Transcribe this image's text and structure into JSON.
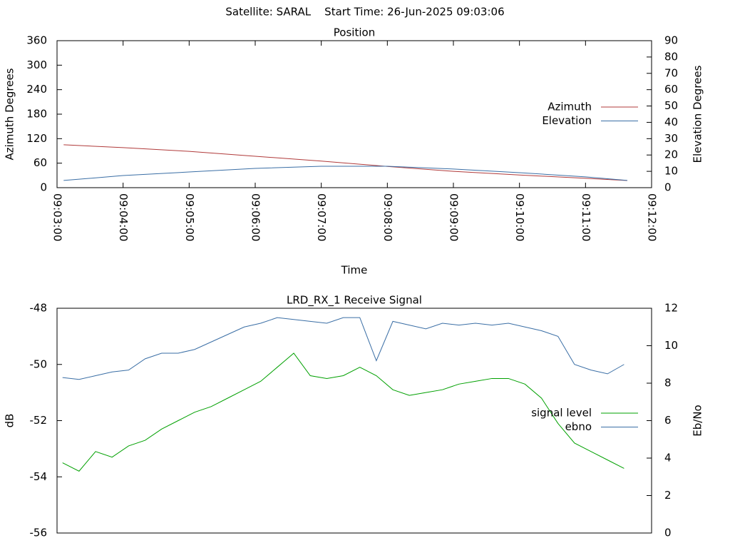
{
  "title": "Satellite: SARAL    Start Time: 26-Jun-2025 09:03:06",
  "chart_data": [
    {
      "type": "line",
      "title": "Position",
      "xlabel": "Time",
      "ylabel": "Azimuth Degrees",
      "y2label": "Elevation Degrees",
      "x": [
        "09:03:06",
        "09:04:00",
        "09:05:00",
        "09:06:00",
        "09:07:00",
        "09:08:00",
        "09:09:00",
        "09:10:00",
        "09:11:00",
        "09:11:38"
      ],
      "series": [
        {
          "name": "Azimuth",
          "color": "#b03a3a",
          "values": [
            105,
            98,
            89,
            77,
            65,
            52,
            40,
            31,
            23,
            17.5
          ]
        },
        {
          "name": "Elevation",
          "color": "#3a6ea5",
          "axis": "y2",
          "values": [
            4.4,
            7.4,
            9.6,
            11.8,
            13.1,
            13.1,
            11.4,
            9.2,
            6.6,
            4.4
          ]
        }
      ],
      "xlim": [
        "09:03:00",
        "09:12:00"
      ],
      "xticks": [
        "09:03:00",
        "09:04:00",
        "09:05:00",
        "09:06:00",
        "09:07:00",
        "09:08:00",
        "09:09:00",
        "09:10:00",
        "09:11:00",
        "09:12:00"
      ],
      "ylim": [
        0,
        360
      ],
      "yticks": [
        0,
        60,
        120,
        180,
        240,
        300,
        360
      ],
      "y2lim": [
        0,
        90
      ],
      "y2ticks": [
        0,
        10,
        20,
        30,
        40,
        50,
        60,
        70,
        80,
        90
      ]
    },
    {
      "type": "line",
      "title": "LRD_RX_1 Receive Signal",
      "ylabel": "dB",
      "y2label": "Eb/No",
      "x": [
        "09:03:05",
        "09:03:20",
        "09:03:35",
        "09:03:50",
        "09:04:05",
        "09:04:20",
        "09:04:35",
        "09:04:50",
        "09:05:05",
        "09:05:20",
        "09:05:35",
        "09:05:50",
        "09:06:05",
        "09:06:20",
        "09:06:35",
        "09:06:50",
        "09:07:05",
        "09:07:20",
        "09:07:35",
        "09:07:50",
        "09:08:05",
        "09:08:20",
        "09:08:35",
        "09:08:50",
        "09:09:05",
        "09:09:20",
        "09:09:35",
        "09:09:50",
        "09:10:05",
        "09:10:20",
        "09:10:35",
        "09:10:50",
        "09:11:05",
        "09:11:20",
        "09:11:35"
      ],
      "series": [
        {
          "name": "signal level",
          "color": "#00a000",
          "values": [
            -53.5,
            -53.8,
            -53.1,
            -53.3,
            -52.9,
            -52.7,
            -52.3,
            -52.0,
            -51.7,
            -51.5,
            -51.2,
            -50.9,
            -50.6,
            -50.1,
            -49.6,
            -50.4,
            -50.5,
            -50.4,
            -50.1,
            -50.4,
            -50.9,
            -51.1,
            -51.0,
            -50.9,
            -50.7,
            -50.6,
            -50.5,
            -50.5,
            -50.7,
            -51.2,
            -52.1,
            -52.8,
            -53.1,
            -53.4,
            -53.7
          ]
        },
        {
          "name": "ebno",
          "color": "#3a6ea5",
          "axis": "y2",
          "values": [
            8.3,
            8.2,
            8.4,
            8.6,
            8.7,
            9.3,
            9.6,
            9.6,
            9.8,
            10.2,
            10.6,
            11.0,
            11.2,
            11.5,
            11.4,
            11.3,
            11.2,
            11.5,
            11.5,
            9.2,
            11.3,
            11.1,
            10.9,
            11.2,
            11.1,
            11.2,
            11.1,
            11.2,
            11.0,
            10.8,
            10.5,
            9.0,
            8.7,
            8.5,
            9.0
          ]
        }
      ],
      "xlim": [
        "09:03:00",
        "09:12:00"
      ],
      "ylim": [
        -56,
        -48
      ],
      "yticks": [
        -56,
        -54,
        -52,
        -50,
        -48
      ],
      "y2lim": [
        0,
        12
      ],
      "y2ticks": [
        0,
        2,
        4,
        6,
        8,
        10,
        12
      ]
    }
  ]
}
